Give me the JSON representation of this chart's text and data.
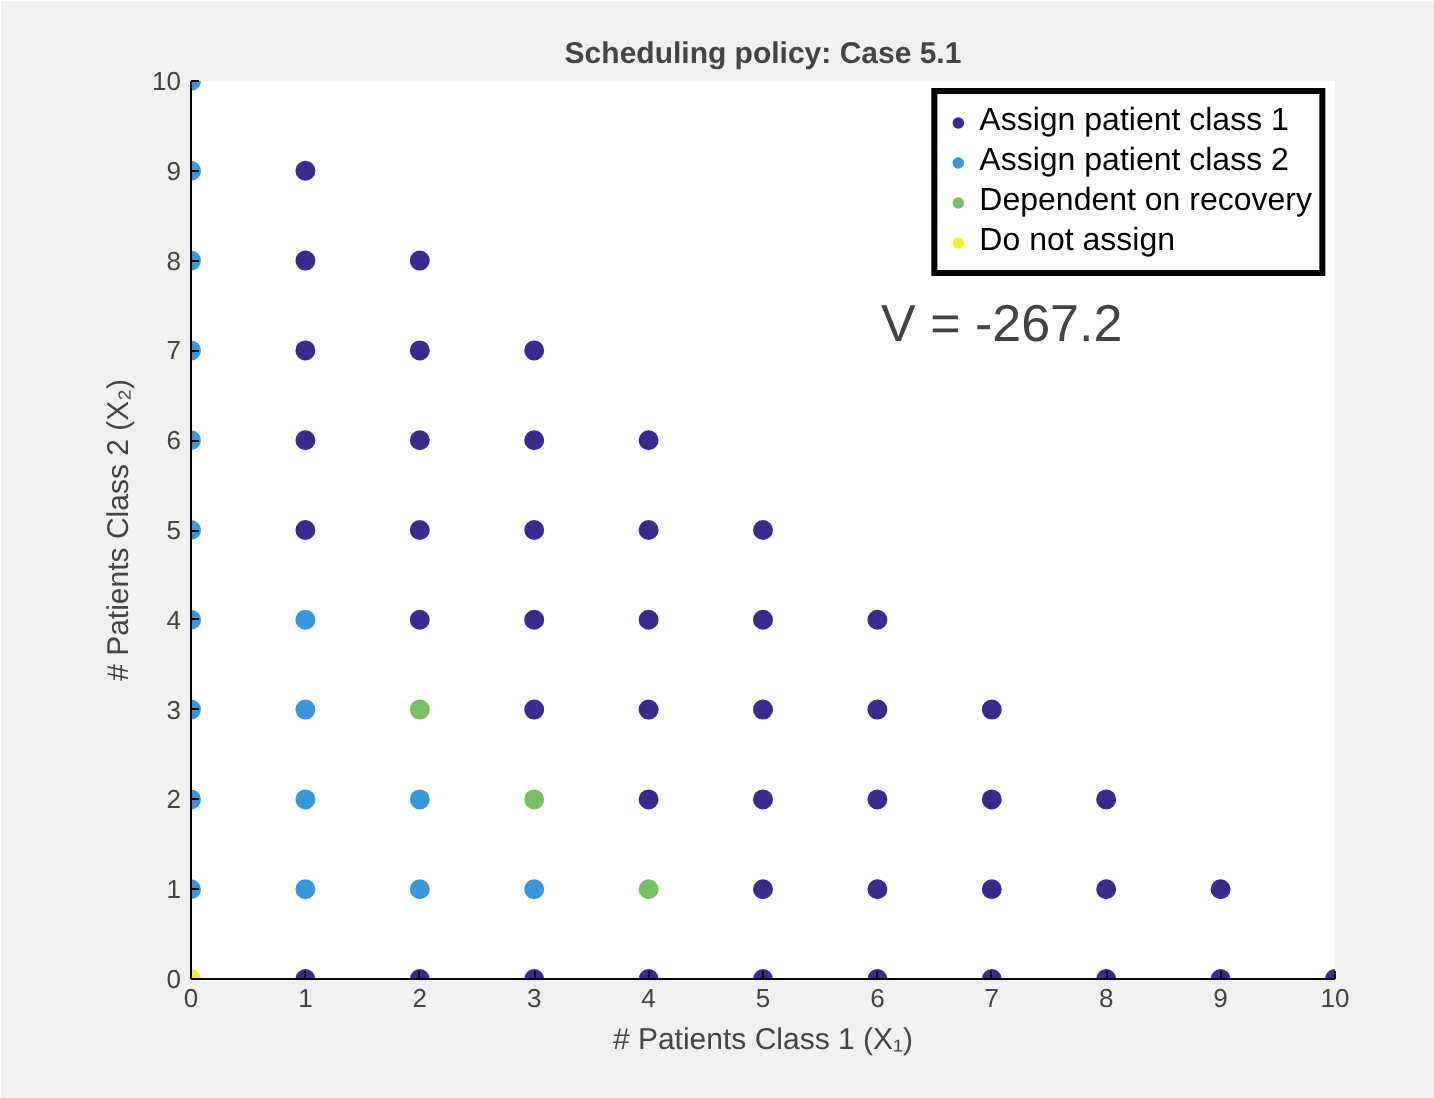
{
  "chart_data": {
    "type": "scatter",
    "title": "Scheduling policy: Case 5.1",
    "xlabel": "# Patients Class 1 (X₁)",
    "ylabel": "# Patients Class 2 (X₂)",
    "annotations": [
      "V = -267.2"
    ],
    "xlim": [
      0,
      10
    ],
    "ylim": [
      0,
      10
    ],
    "xticks": [
      0,
      1,
      2,
      3,
      4,
      5,
      6,
      7,
      8,
      9,
      10
    ],
    "yticks": [
      0,
      1,
      2,
      3,
      4,
      5,
      6,
      7,
      8,
      9,
      10
    ],
    "grid": false,
    "legend": "top right",
    "marker": "circle",
    "series": [
      {
        "name": "Assign patient class 1",
        "color": "#3b2b8f",
        "x": [
          1,
          1,
          1,
          1,
          1,
          1,
          2,
          2,
          2,
          2,
          2,
          2,
          3,
          3,
          3,
          3,
          3,
          3,
          4,
          4,
          4,
          4,
          4,
          4,
          5,
          5,
          5,
          5,
          5,
          5,
          6,
          6,
          6,
          6,
          6,
          7,
          7,
          7,
          7,
          8,
          8,
          8,
          9,
          9,
          10
        ],
        "values": [
          0,
          5,
          6,
          7,
          8,
          9,
          0,
          4,
          5,
          6,
          7,
          8,
          0,
          3,
          4,
          5,
          6,
          7,
          0,
          2,
          3,
          4,
          5,
          6,
          0,
          1,
          2,
          3,
          4,
          5,
          0,
          1,
          2,
          3,
          4,
          0,
          1,
          2,
          3,
          0,
          1,
          2,
          0,
          1,
          0
        ]
      },
      {
        "name": "Assign patient class 2",
        "color": "#3897dc",
        "x": [
          0,
          0,
          0,
          0,
          0,
          0,
          0,
          0,
          0,
          0,
          1,
          1,
          1,
          1,
          2,
          2,
          3
        ],
        "values": [
          1,
          2,
          3,
          4,
          5,
          6,
          7,
          8,
          9,
          10,
          1,
          2,
          3,
          4,
          1,
          2,
          1
        ]
      },
      {
        "name": "Dependent on recovery",
        "color": "#79c060",
        "x": [
          2,
          3,
          4
        ],
        "values": [
          3,
          2,
          1
        ]
      },
      {
        "name": "Do not assign",
        "color": "#f0f032",
        "x": [
          0
        ],
        "values": [
          0
        ]
      }
    ]
  }
}
